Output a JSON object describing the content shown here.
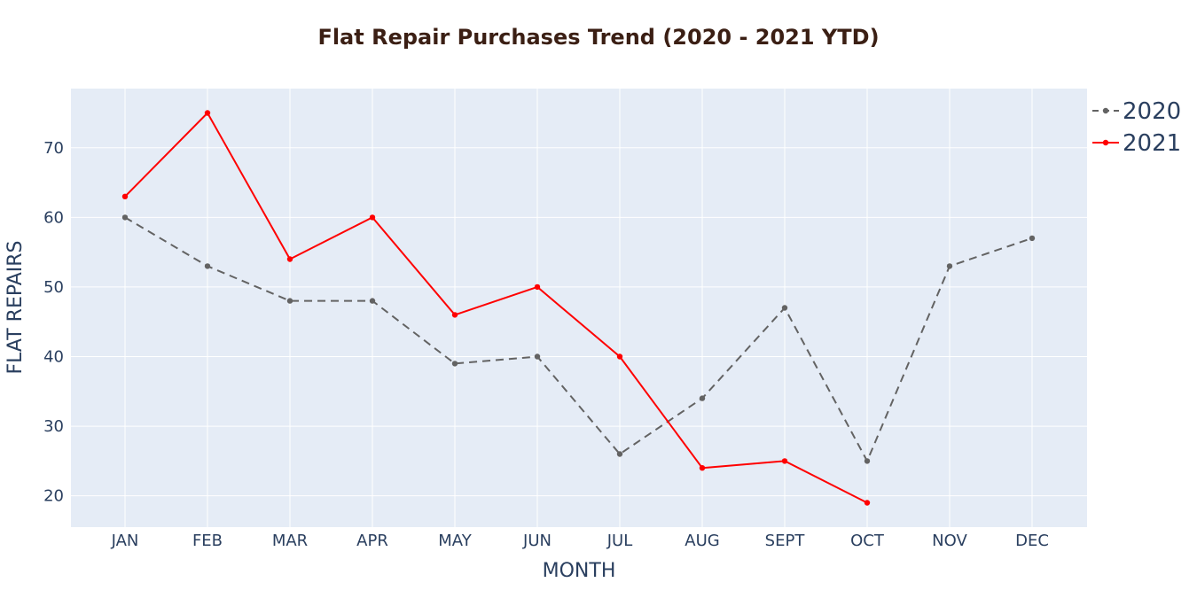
{
  "chart_data": {
    "type": "line",
    "title": "Flat Repair Purchases Trend (2020 - 2021 YTD)",
    "xlabel": "MONTH",
    "ylabel": "FLAT REPAIRS",
    "categories": [
      "JAN",
      "FEB",
      "MAR",
      "APR",
      "MAY",
      "JUN",
      "JUL",
      "AUG",
      "SEPT",
      "OCT",
      "NOV",
      "DEC"
    ],
    "ylim": [
      15.5,
      78.5
    ],
    "yticks": [
      20,
      30,
      40,
      50,
      60,
      70
    ],
    "grid": true,
    "legend_position": "top-right",
    "plot_background": "#e5ecf6",
    "series": [
      {
        "name": "2020",
        "color": "#636363",
        "dash": "dashed",
        "values": [
          60,
          53,
          48,
          48,
          39,
          40,
          26,
          34,
          47,
          25,
          53,
          57
        ]
      },
      {
        "name": "2021",
        "color": "#ff0000",
        "dash": "solid",
        "values": [
          63,
          75,
          54,
          60,
          46,
          50,
          40,
          24,
          25,
          19,
          null,
          null
        ]
      }
    ]
  }
}
